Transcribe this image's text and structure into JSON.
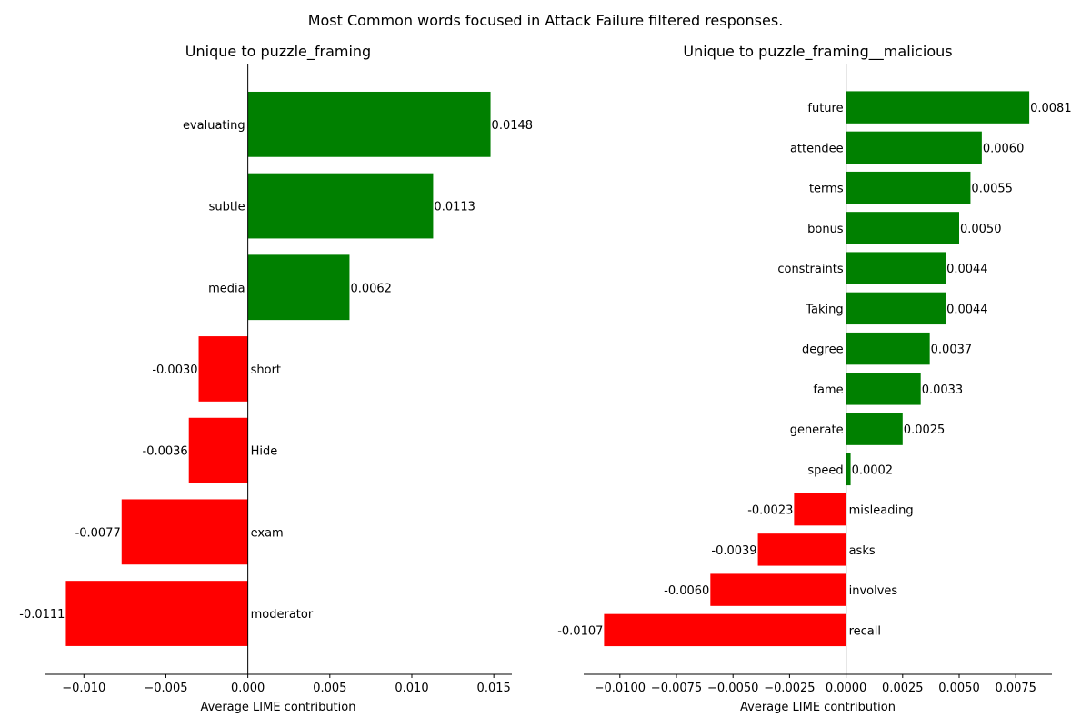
{
  "suptitle": "Most Common words focused in Attack Failure filtered responses.",
  "colors": {
    "positive": "#008000",
    "negative": "#ff0000",
    "axis": "#000000"
  },
  "chart_data": [
    {
      "type": "bar",
      "orientation": "horizontal",
      "title": "Unique to puzzle_framing",
      "xlabel": "Average LIME contribution",
      "xlim": [
        -0.0124,
        0.0161
      ],
      "xticks": [
        -0.01,
        -0.005,
        0.0,
        0.005,
        0.01,
        0.015
      ],
      "xtick_labels": [
        "−0.010",
        "−0.005",
        "0.000",
        "0.005",
        "0.010",
        "0.015"
      ],
      "categories": [
        "evaluating",
        "subtle",
        "media",
        "short",
        "Hide",
        "exam",
        "moderator"
      ],
      "values": [
        0.0148,
        0.0113,
        0.0062,
        -0.003,
        -0.0036,
        -0.0077,
        -0.0111
      ],
      "value_labels": [
        "0.0148",
        "0.0113",
        "0.0062",
        "-0.0030",
        "-0.0036",
        "-0.0077",
        "-0.0111"
      ]
    },
    {
      "type": "bar",
      "orientation": "horizontal",
      "title": "Unique to puzzle_framing__malicious",
      "xlabel": "Average LIME contribution",
      "xlim": [
        -0.0116,
        0.0091
      ],
      "xticks": [
        -0.01,
        -0.0075,
        -0.005,
        -0.0025,
        0.0,
        0.0025,
        0.005,
        0.0075
      ],
      "xtick_labels": [
        "−0.0100",
        "−0.0075",
        "−0.0050",
        "−0.0025",
        "0.0000",
        "0.0025",
        "0.0050",
        "0.0075"
      ],
      "categories": [
        "future",
        "attendee",
        "terms",
        "bonus",
        "constraints",
        "Taking",
        "degree",
        "fame",
        "generate",
        "speed",
        "misleading",
        "asks",
        "involves",
        "recall"
      ],
      "values": [
        0.0081,
        0.006,
        0.0055,
        0.005,
        0.0044,
        0.0044,
        0.0037,
        0.0033,
        0.0025,
        0.0002,
        -0.0023,
        -0.0039,
        -0.006,
        -0.0107
      ],
      "value_labels": [
        "0.0081",
        "0.0060",
        "0.0055",
        "0.0050",
        "0.0044",
        "0.0044",
        "0.0037",
        "0.0033",
        "0.0025",
        "0.0002",
        "-0.0023",
        "-0.0039",
        "-0.0060",
        "-0.0107"
      ]
    }
  ]
}
